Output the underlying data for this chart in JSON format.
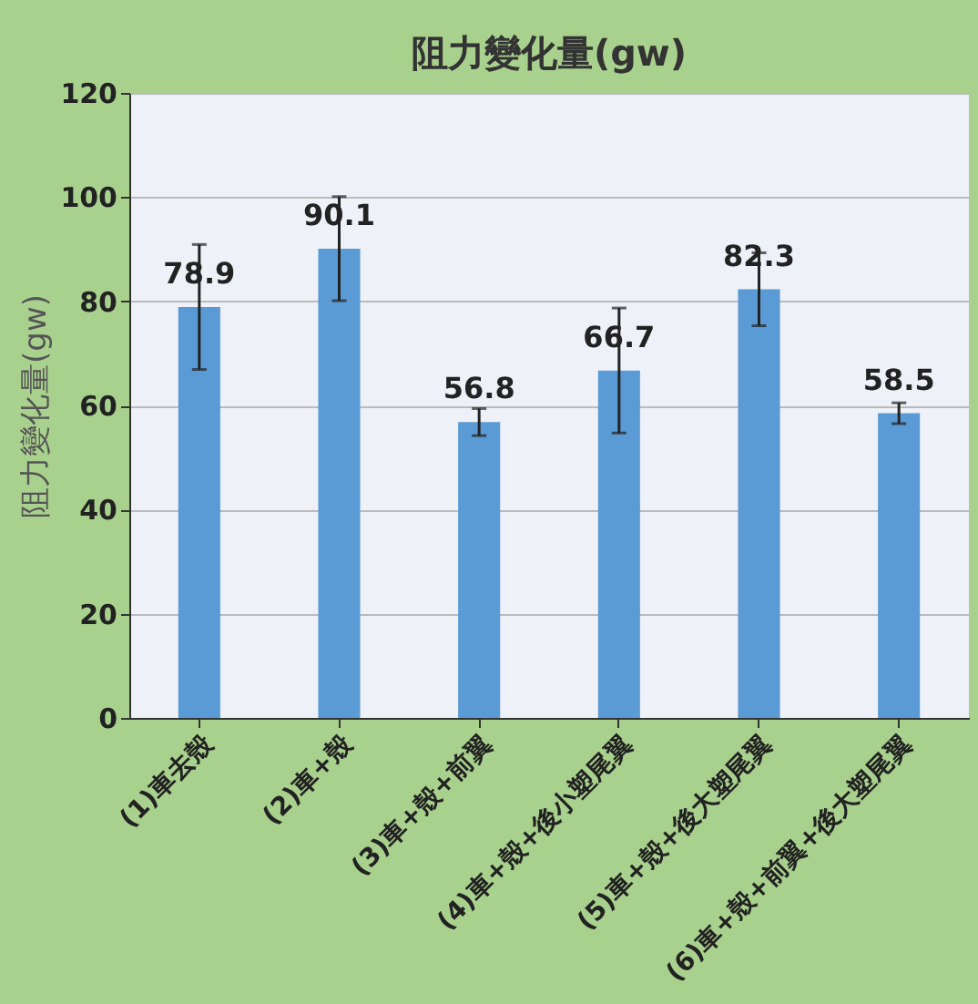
{
  "chart_data": {
    "type": "bar",
    "title": "阻力變化量(gw)",
    "ylabel": "阻力變化量(gw)",
    "categories": [
      "(1)車去殼",
      "(2)車+殼",
      "(3)車+殼+前翼",
      "(4)車+殼+後小塑尾翼",
      "(5)車+殼+後大塑尾翼",
      "(6)車+殼+前翼+後大塑尾翼"
    ],
    "values": [
      78.9,
      90.1,
      56.8,
      66.7,
      82.3,
      58.5
    ],
    "errors": [
      12,
      10,
      2.6,
      12,
      7,
      2
    ],
    "color": "#5b9bd5",
    "ylim": [
      0,
      120
    ],
    "yticks": [
      0,
      20,
      40,
      60,
      80,
      100,
      120
    ],
    "grid": "y",
    "data_labels": true
  }
}
